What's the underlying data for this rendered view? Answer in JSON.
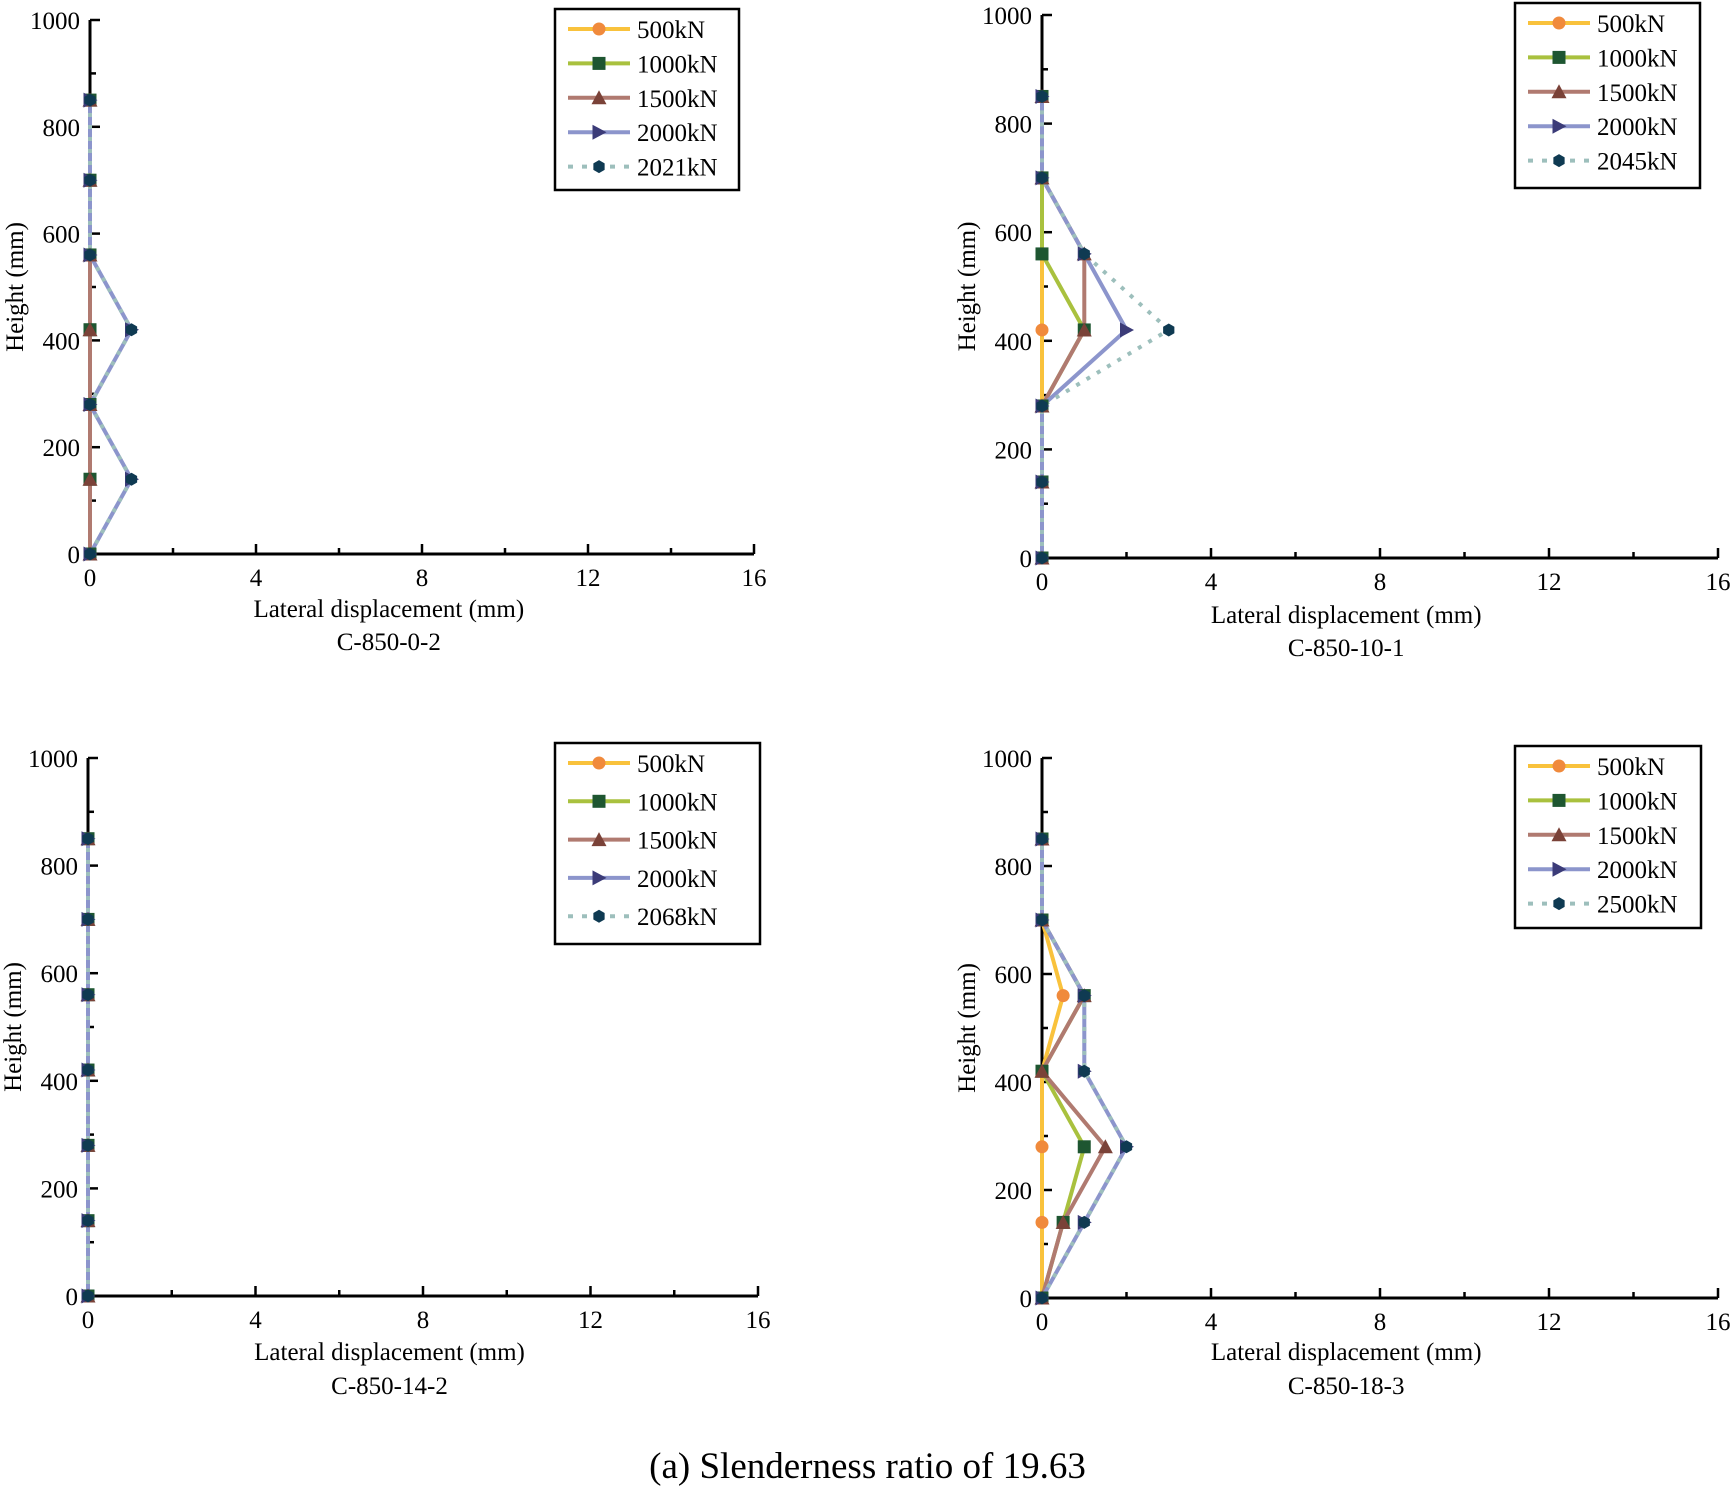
{
  "caption": "(a) Slenderness ratio of 19.63",
  "colors": {
    "500kN_line": "#F9C23C",
    "500kN_marker": "#F08A3C",
    "1000kN_line": "#A9C13E",
    "1000kN_marker": "#1E5631",
    "1500kN_line": "#B07A70",
    "1500kN_marker": "#7A4238",
    "2000kN_line": "#8C95CC",
    "2000kN_marker": "#3B3B78",
    "final_line": "#9DBFBC",
    "final_marker": "#0F3A52",
    "axis": "#000000"
  },
  "chart_data": [
    {
      "type": "line",
      "caption": "C-850-0-2",
      "xlabel": "Lateral displacement (mm)",
      "ylabel": "Height (mm)",
      "xlim": [
        0,
        16
      ],
      "ylim": [
        0,
        1000
      ],
      "xticks": [
        "0",
        "4",
        "8",
        "12",
        "16"
      ],
      "yticks": [
        "0",
        "200",
        "400",
        "600",
        "800",
        "1000"
      ],
      "legend_position": "top-right",
      "heights": [
        0,
        140,
        280,
        420,
        560,
        700,
        850
      ],
      "series": [
        {
          "name": "500kN",
          "values": [
            0,
            0,
            0,
            0,
            0,
            0,
            0
          ]
        },
        {
          "name": "1000kN",
          "values": [
            0,
            0,
            0,
            0,
            0,
            0,
            0
          ]
        },
        {
          "name": "1500kN",
          "values": [
            0,
            0,
            0,
            0,
            0,
            0,
            0
          ]
        },
        {
          "name": "2000kN",
          "values": [
            0,
            1,
            0,
            1,
            0,
            0,
            0
          ]
        },
        {
          "name": "2021kN",
          "values": [
            0,
            1,
            0,
            1,
            0,
            0,
            0
          ]
        }
      ]
    },
    {
      "type": "line",
      "caption": "C-850-10-1",
      "xlabel": "Lateral displacement (mm)",
      "ylabel": "Height (mm)",
      "xlim": [
        0,
        16
      ],
      "ylim": [
        0,
        1000
      ],
      "xticks": [
        "0",
        "4",
        "8",
        "12",
        "16"
      ],
      "yticks": [
        "0",
        "200",
        "400",
        "600",
        "800",
        "1000"
      ],
      "legend_position": "top-right",
      "heights": [
        0,
        140,
        280,
        420,
        560,
        700,
        850
      ],
      "series": [
        {
          "name": "500kN",
          "values": [
            0,
            0,
            0,
            0,
            0,
            0,
            0
          ]
        },
        {
          "name": "1000kN",
          "values": [
            0,
            0,
            0,
            1,
            0,
            0,
            0
          ]
        },
        {
          "name": "1500kN",
          "values": [
            0,
            0,
            0,
            1,
            1,
            0,
            0
          ]
        },
        {
          "name": "2000kN",
          "values": [
            0,
            0,
            0,
            2,
            1,
            0,
            0
          ]
        },
        {
          "name": "2045kN",
          "values": [
            0,
            0,
            0,
            3,
            1,
            0,
            0
          ]
        }
      ]
    },
    {
      "type": "line",
      "caption": "C-850-14-2",
      "xlabel": "Lateral displacement (mm)",
      "ylabel": "Height (mm)",
      "xlim": [
        0,
        16
      ],
      "ylim": [
        0,
        1000
      ],
      "xticks": [
        "0",
        "4",
        "8",
        "12",
        "16"
      ],
      "yticks": [
        "0",
        "200",
        "400",
        "600",
        "800",
        "1000"
      ],
      "legend_position": "top-right",
      "heights": [
        0,
        140,
        280,
        420,
        560,
        700,
        850
      ],
      "series": [
        {
          "name": "500kN",
          "values": [
            0,
            0,
            0,
            0,
            0,
            0,
            0
          ]
        },
        {
          "name": "1000kN",
          "values": [
            0,
            0,
            0,
            0,
            0,
            0,
            0
          ]
        },
        {
          "name": "1500kN",
          "values": [
            0,
            0,
            0,
            0,
            0,
            0,
            0
          ]
        },
        {
          "name": "2000kN",
          "values": [
            0,
            0,
            0,
            0,
            0,
            0,
            0
          ]
        },
        {
          "name": "2068kN",
          "values": [
            0,
            0,
            0,
            0,
            0,
            0,
            0
          ]
        }
      ]
    },
    {
      "type": "line",
      "caption": "C-850-18-3",
      "xlabel": "Lateral displacement (mm)",
      "ylabel": "Height (mm)",
      "xlim": [
        0,
        16
      ],
      "ylim": [
        0,
        1000
      ],
      "xticks": [
        "0",
        "4",
        "8",
        "12",
        "16"
      ],
      "yticks": [
        "0",
        "200",
        "400",
        "600",
        "800",
        "1000"
      ],
      "legend_position": "top-right",
      "heights": [
        0,
        140,
        280,
        420,
        560,
        700,
        850
      ],
      "series": [
        {
          "name": "500kN",
          "values": [
            0,
            0,
            0,
            0,
            0.5,
            0,
            0
          ]
        },
        {
          "name": "1000kN",
          "values": [
            0,
            0.5,
            1,
            0,
            1,
            0,
            0
          ]
        },
        {
          "name": "1500kN",
          "values": [
            0,
            0.5,
            1.5,
            0,
            1,
            0,
            0
          ]
        },
        {
          "name": "2000kN",
          "values": [
            0,
            1,
            2,
            1,
            1,
            0,
            0
          ]
        },
        {
          "name": "2500kN",
          "values": [
            0,
            1,
            2,
            1,
            1,
            0,
            0
          ]
        }
      ]
    }
  ]
}
